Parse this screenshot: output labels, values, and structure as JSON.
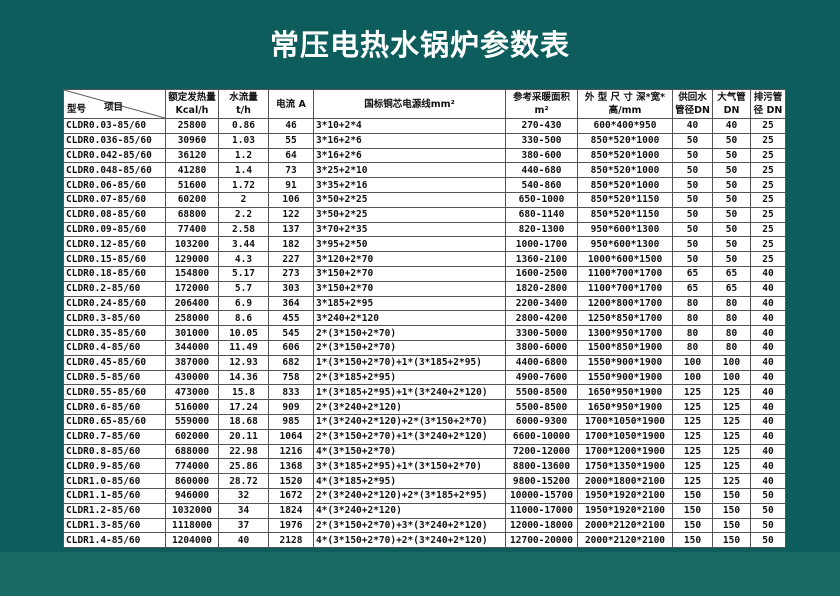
{
  "title": "常压电热水锅炉参数表",
  "table": {
    "header_model": "型号",
    "header_item": "项目",
    "columns": [
      "额定发热量Kcal/h",
      "水流量 t/h",
      "电流 A",
      "国标铜芯电源线mm²",
      "参考采暖面积 m²",
      "外 型 尺 寸 深*宽*高/mm",
      "供回水 管径DN",
      "大气管 DN",
      "排污管 径 DN"
    ],
    "rows": [
      [
        "CLDR0.03-85/60",
        "25800",
        "0.86",
        "46",
        "3*10+2*4",
        "270-430",
        "600*400*950",
        "40",
        "40",
        "25"
      ],
      [
        "CLDR0.036-85/60",
        "30960",
        "1.03",
        "55",
        "3*16+2*6",
        "330-500",
        "850*520*1000",
        "50",
        "50",
        "25"
      ],
      [
        "CLDR0.042-85/60",
        "36120",
        "1.2",
        "64",
        "3*16+2*6",
        "380-600",
        "850*520*1000",
        "50",
        "50",
        "25"
      ],
      [
        "CLDR0.048-85/60",
        "41280",
        "1.4",
        "73",
        "3*25+2*10",
        "440-680",
        "850*520*1000",
        "50",
        "50",
        "25"
      ],
      [
        "CLDR0.06-85/60",
        "51600",
        "1.72",
        "91",
        "3*35+2*16",
        "540-860",
        "850*520*1000",
        "50",
        "50",
        "25"
      ],
      [
        "CLDR0.07-85/60",
        "60200",
        "2",
        "106",
        "3*50+2*25",
        "650-1000",
        "850*520*1150",
        "50",
        "50",
        "25"
      ],
      [
        "CLDR0.08-85/60",
        "68800",
        "2.2",
        "122",
        "3*50+2*25",
        "680-1140",
        "850*520*1150",
        "50",
        "50",
        "25"
      ],
      [
        "CLDR0.09-85/60",
        "77400",
        "2.58",
        "137",
        "3*70+2*35",
        "820-1300",
        "950*600*1300",
        "50",
        "50",
        "25"
      ],
      [
        "CLDR0.12-85/60",
        "103200",
        "3.44",
        "182",
        "3*95+2*50",
        "1000-1700",
        "950*600*1300",
        "50",
        "50",
        "25"
      ],
      [
        "CLDR0.15-85/60",
        "129000",
        "4.3",
        "227",
        "3*120+2*70",
        "1360-2100",
        "1000*600*1500",
        "50",
        "50",
        "25"
      ],
      [
        "CLDR0.18-85/60",
        "154800",
        "5.17",
        "273",
        "3*150+2*70",
        "1600-2500",
        "1100*700*1700",
        "65",
        "65",
        "40"
      ],
      [
        "CLDR0.2-85/60",
        "172000",
        "5.7",
        "303",
        "3*150+2*70",
        "1820-2800",
        "1100*700*1700",
        "65",
        "65",
        "40"
      ],
      [
        "CLDR0.24-85/60",
        "206400",
        "6.9",
        "364",
        "3*185+2*95",
        "2200-3400",
        "1200*800*1700",
        "80",
        "80",
        "40"
      ],
      [
        "CLDR0.3-85/60",
        "258000",
        "8.6",
        "455",
        "3*240+2*120",
        "2800-4200",
        "1250*850*1700",
        "80",
        "80",
        "40"
      ],
      [
        "CLDR0.35-85/60",
        "301000",
        "10.05",
        "545",
        "2*(3*150+2*70)",
        "3300-5000",
        "1300*950*1700",
        "80",
        "80",
        "40"
      ],
      [
        "CLDR0.4-85/60",
        "344000",
        "11.49",
        "606",
        "2*(3*150+2*70)",
        "3800-6000",
        "1500*850*1900",
        "80",
        "80",
        "40"
      ],
      [
        "CLDR0.45-85/60",
        "387000",
        "12.93",
        "682",
        "1*(3*150+2*70)+1*(3*185+2*95)",
        "4400-6800",
        "1550*900*1900",
        "100",
        "100",
        "40"
      ],
      [
        "CLDR0.5-85/60",
        "430000",
        "14.36",
        "758",
        "2*(3*185+2*95)",
        "4900-7600",
        "1550*900*1900",
        "100",
        "100",
        "40"
      ],
      [
        "CLDR0.55-85/60",
        "473000",
        "15.8",
        "833",
        "1*(3*185+2*95)+1*(3*240+2*120)",
        "5500-8500",
        "1650*950*1900",
        "125",
        "125",
        "40"
      ],
      [
        "CLDR0.6-85/60",
        "516000",
        "17.24",
        "909",
        "2*(3*240+2*120)",
        "5500-8500",
        "1650*950*1900",
        "125",
        "125",
        "40"
      ],
      [
        "CLDR0.65-85/60",
        "559000",
        "18.68",
        "985",
        "1*(3*240+2*120)+2*(3*150+2*70)",
        "6000-9300",
        "1700*1050*1900",
        "125",
        "125",
        "40"
      ],
      [
        "CLDR0.7-85/60",
        "602000",
        "20.11",
        "1064",
        "2*(3*150+2*70)+1*(3*240+2*120)",
        "6600-10000",
        "1700*1050*1900",
        "125",
        "125",
        "40"
      ],
      [
        "CLDR0.8-85/60",
        "688000",
        "22.98",
        "1216",
        "4*(3*150+2*70)",
        "7200-12000",
        "1700*1200*1900",
        "125",
        "125",
        "40"
      ],
      [
        "CLDR0.9-85/60",
        "774000",
        "25.86",
        "1368",
        "3*(3*185+2*95)+1*(3*150+2*70)",
        "8800-13600",
        "1750*1350*1900",
        "125",
        "125",
        "40"
      ],
      [
        "CLDR1.0-85/60",
        "860000",
        "28.72",
        "1520",
        "4*(3*185+2*95)",
        "9800-15200",
        "2000*1800*2100",
        "125",
        "125",
        "40"
      ],
      [
        "CLDR1.1-85/60",
        "946000",
        "32",
        "1672",
        "2*(3*240+2*120)+2*(3*185+2*95)",
        "10000-15700",
        "1950*1920*2100",
        "150",
        "150",
        "50"
      ],
      [
        "CLDR1.2-85/60",
        "1032000",
        "34",
        "1824",
        "4*(3*240+2*120)",
        "11000-17000",
        "1950*1920*2100",
        "150",
        "150",
        "50"
      ],
      [
        "CLDR1.3-85/60",
        "1118000",
        "37",
        "1976",
        "2*(3*150+2*70)+3*(3*240+2*120)",
        "12000-18000",
        "2000*2120*2100",
        "150",
        "150",
        "50"
      ],
      [
        "CLDR1.4-85/60",
        "1204000",
        "40",
        "2128",
        "4*(3*150+2*70)+2*(3*240+2*120)",
        "12700-20000",
        "2000*2120*2100",
        "150",
        "150",
        "50"
      ]
    ]
  }
}
